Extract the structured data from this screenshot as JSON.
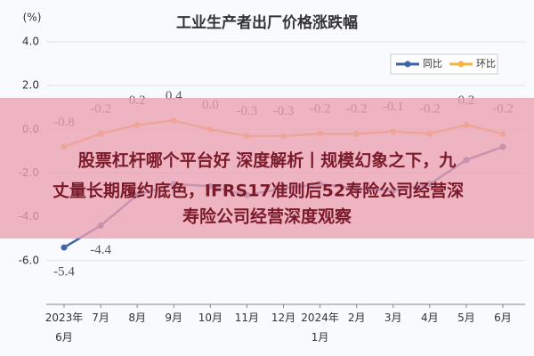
{
  "chart_data": {
    "type": "line",
    "title": "工业生产者出厂价格涨跌幅",
    "y_label": "(%)",
    "categories": [
      "2023年\n6月",
      "7月",
      "8月",
      "9月",
      "10月",
      "11月",
      "12月",
      "2024年\n1月",
      "2月",
      "3月",
      "4月",
      "5月",
      "6月"
    ],
    "series": [
      {
        "name": "同比",
        "color": "#3f62aa",
        "values": [
          -5.4,
          -4.4,
          -3.0,
          -2.5,
          -2.6,
          -3.0,
          -2.7,
          -2.5,
          -2.7,
          -2.8,
          -2.5,
          -1.4,
          -0.8
        ],
        "value_labels": [
          "-5.4",
          "-4.4",
          null,
          null,
          null,
          null,
          null,
          null,
          null,
          null,
          null,
          null,
          null
        ]
      },
      {
        "name": "环比",
        "color": "#f4b548",
        "values": [
          -0.8,
          -0.2,
          0.2,
          0.4,
          0.0,
          -0.3,
          -0.3,
          -0.2,
          -0.2,
          -0.1,
          -0.2,
          0.2,
          -0.2
        ],
        "value_labels": [
          "-0.8",
          "-0.2",
          "0.2",
          "0.4",
          "0.0",
          "-0.3",
          "-0.3",
          "-0.2",
          "-0.2",
          "-0.1",
          "-0.2",
          "0.2",
          "-0.2"
        ]
      }
    ],
    "ylim": [
      -8,
      4
    ],
    "yticks": [
      {
        "value": -6,
        "label": "-6.0"
      },
      {
        "value": -4,
        "label": "-4.0"
      },
      {
        "value": -2,
        "label": "-2.0"
      },
      {
        "value": 0,
        "label": "0.0"
      },
      {
        "value": 2,
        "label": "2.0"
      },
      {
        "value": 4,
        "label": "4.0"
      }
    ],
    "grid": true,
    "legend": "top-right"
  },
  "overlay": {
    "lines": [
      "股票杠杆哪个平台好 深度解析丨规模幻象之下，九",
      "丈量长期履约底色，IFRS17准则后52寿险公司经营深",
      "寿险公司经营深度观察"
    ]
  }
}
